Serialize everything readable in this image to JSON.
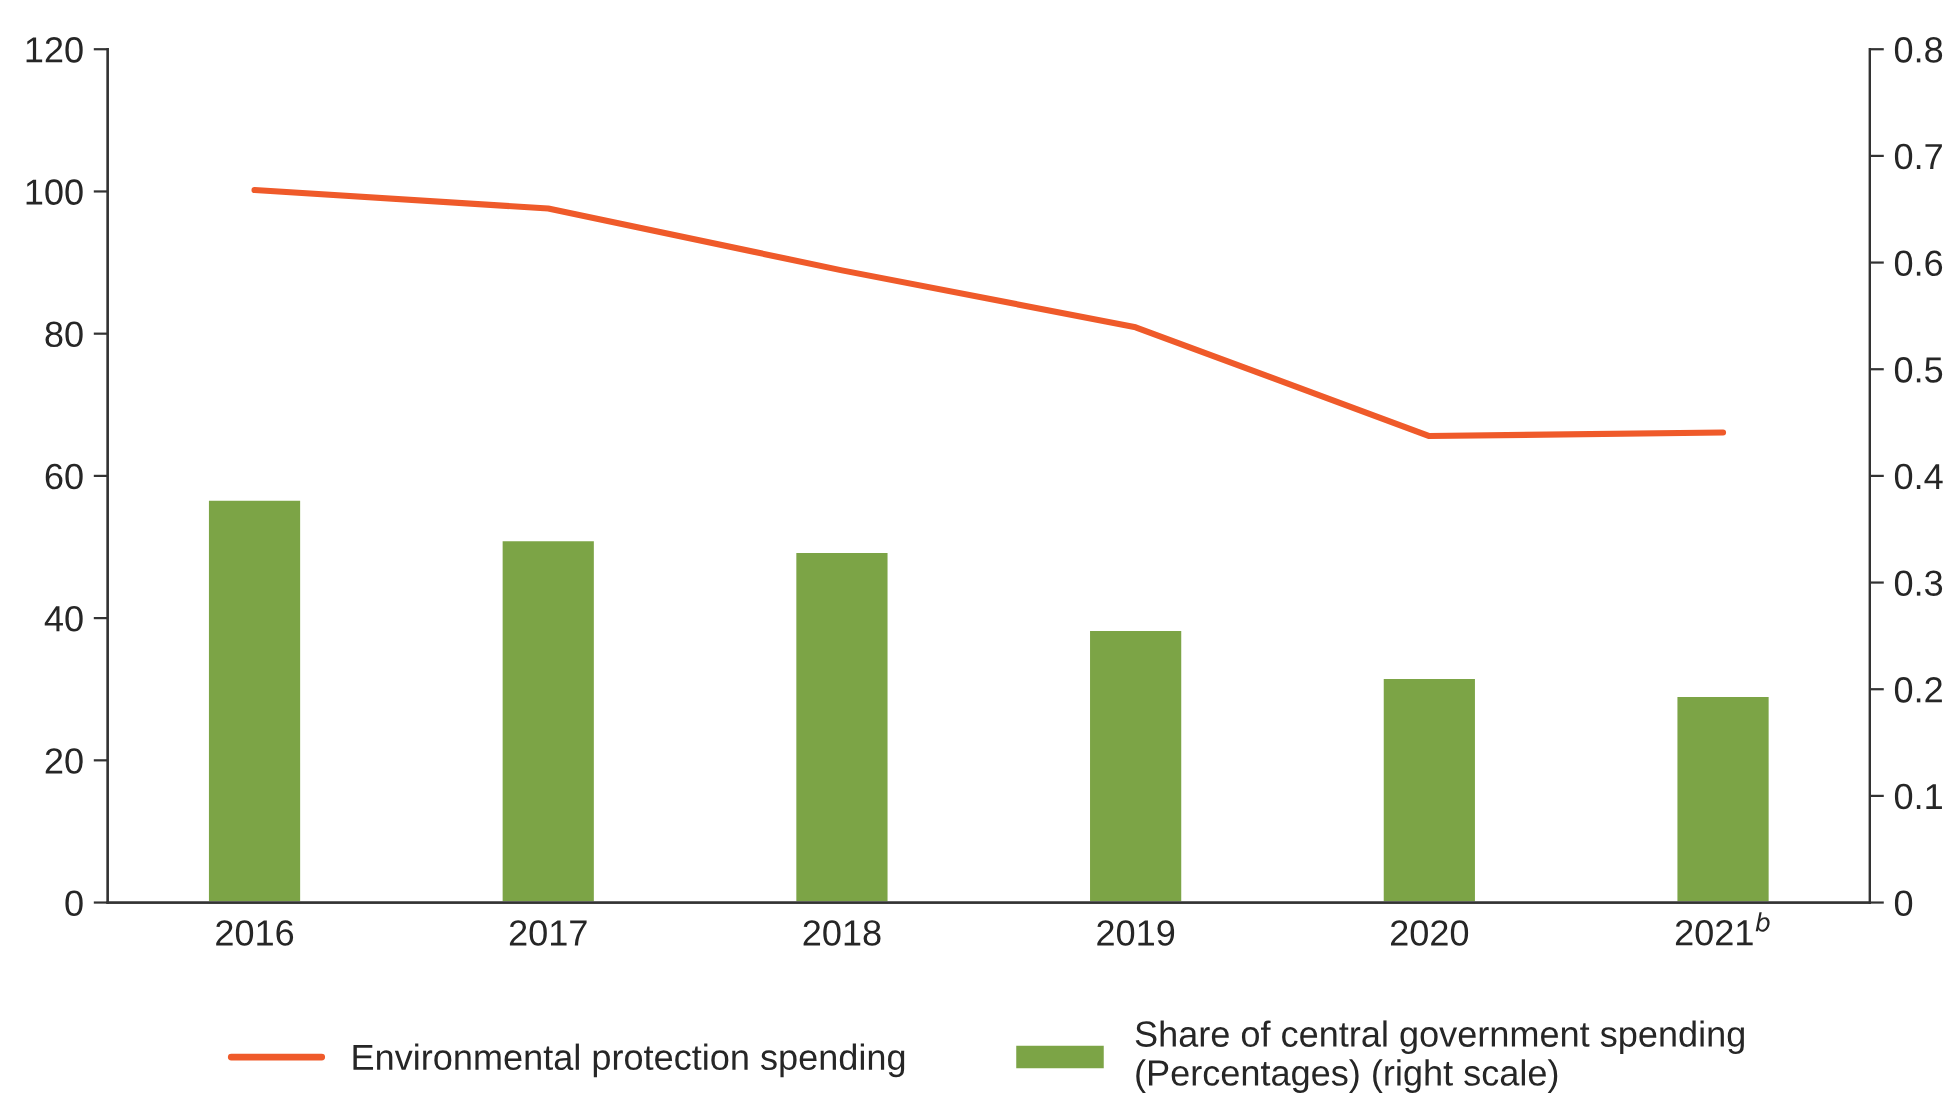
{
  "chart_data": {
    "type": "bar",
    "categories": [
      "2016",
      "2017",
      "2018",
      "2019",
      "2020",
      "2021$^{b}$"
    ],
    "series": [
      {
        "name": "Environmental protection spending",
        "type": "line",
        "color": "#ef5a2a",
        "values": [
          100.2,
          97.6,
          88.9,
          80.9,
          65.6,
          66.1
        ]
      },
      {
        "name": "Share of central government spending\n(Percentages) (right scale)",
        "axis": "y2",
        "color": "#7ca446",
        "values": [
          0.378,
          0.34,
          0.329,
          0.256,
          0.211,
          0.194
        ]
      }
    ],
    "ylim": [
      0,
      120
    ],
    "yticks": [
      0,
      20,
      40,
      60,
      80,
      100,
      120
    ],
    "y2lim": [
      0,
      0.8
    ],
    "y2ticks": [
      0,
      0.1,
      0.2,
      0.3,
      0.4,
      0.5,
      0.6,
      0.7,
      0.8
    ],
    "grid": false,
    "legend": "bottom",
    "marker": "none",
    "line_style": "solid"
  }
}
